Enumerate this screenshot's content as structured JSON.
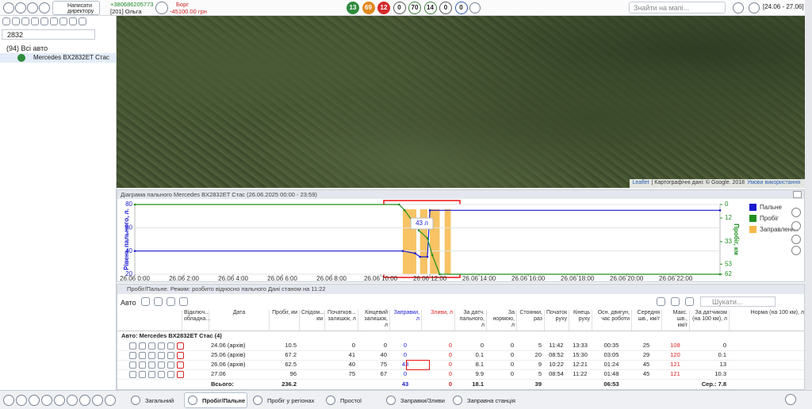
{
  "toolbar": {
    "user_button": "Написати директору",
    "phone": "+380686205773",
    "operator": "[201] Ольга",
    "debt_label": "Борг",
    "debt": "-45100.00 грн",
    "badges": [
      {
        "value": 13,
        "color": "#2e8b3e",
        "filled": true
      },
      {
        "value": 69,
        "color": "#e0891e",
        "filled": true
      },
      {
        "value": 12,
        "color": "#d42a2a",
        "filled": true
      },
      {
        "value": 0,
        "color": "#555555",
        "filled": false
      },
      {
        "value": 70,
        "color": "#3a7f3a",
        "filled": false
      },
      {
        "value": 14,
        "color": "#3a7f3a",
        "filled": false
      },
      {
        "value": 0,
        "color": "#555555",
        "filled": false
      },
      {
        "value": 0,
        "color": "#2f5fb3",
        "filled": false
      }
    ],
    "map_search": "Знайти на мапі...",
    "date_range": "[24.06 - 27.06]"
  },
  "sidebar": {
    "search": "2832",
    "group": "(94) Всі авто",
    "vehicle": "Mercedes BX2832ET Стас"
  },
  "map": {
    "leaflet": "Leaflet",
    "attribution": "| Картографічні дані: © Google. 2018",
    "terms": "Умови використання"
  },
  "fuel_chart": {
    "type": "line",
    "title": "Діаграма пального Mercedes BX2832ET Стас (26.06.2025 00:00 - 23:59)",
    "y_label": "Рівень пального, л.",
    "y2_label": "Пробіг, км",
    "annotation": "43 л",
    "xlim": [
      0,
      23.8
    ],
    "ylim": [
      20,
      80
    ],
    "y2lim": [
      0,
      62
    ],
    "y2_inverted": true,
    "xticks": [
      {
        "value": 0,
        "label": "26.06 0:00"
      },
      {
        "value": 2,
        "label": "26.06 2:00"
      },
      {
        "value": 4,
        "label": "26.06 4:00"
      },
      {
        "value": 6,
        "label": "26.06 6:00"
      },
      {
        "value": 8,
        "label": "26.06 8:00"
      },
      {
        "value": 10,
        "label": "26.06 10:00"
      },
      {
        "value": 12,
        "label": "26.06 12:00"
      },
      {
        "value": 14,
        "label": "26.06 14:00"
      },
      {
        "value": 16,
        "label": "26.06 16:00"
      },
      {
        "value": 18,
        "label": "26.06 18:00"
      },
      {
        "value": 20,
        "label": "26.06 20:00"
      },
      {
        "value": 22,
        "label": "26.06 22:00"
      }
    ],
    "yticks": [
      20,
      40,
      60,
      80
    ],
    "y2ticks": [
      0,
      12,
      33,
      53,
      62
    ],
    "series": [
      {
        "name": "Пальне",
        "color": "#1a1ad0",
        "x": [
          0,
          10.9,
          11.4,
          11.6,
          11.9,
          12.0,
          23.8
        ],
        "values": [
          40,
          40,
          38,
          35,
          35,
          75,
          75
        ]
      },
      {
        "name": "Пробіг",
        "color": "#1f8f1f",
        "axis": "y2",
        "x": [
          0,
          10.75,
          10.97,
          11.3,
          11.55,
          11.9,
          12.1,
          12.4,
          23.8
        ],
        "values": [
          0,
          0,
          5,
          15,
          23,
          30,
          45,
          62,
          62
        ]
      }
    ],
    "refuel": {
      "name": "Заправлення",
      "color": "#f6b94a",
      "intervals": [
        [
          10.9,
          11.45
        ],
        [
          11.6,
          11.9
        ],
        [
          12.0,
          12.4
        ],
        [
          12.6,
          12.85
        ]
      ]
    }
  },
  "table": {
    "title": "Пробіг/Пальне. Режим: розбито відносно пального Дані станом на 11:22",
    "group_by": "Авто",
    "search": "Шукати...",
    "headers": [
      "Відключ...\nобладна...",
      "Дата",
      "Пробіг, км",
      "Спідом...\nкм",
      "Початков...\nзалишок, л",
      "Кінцевий\nзалишок, л",
      "Заправки,\nл",
      "Зливи, л",
      "За датч.\nпального, л",
      "За\nнормою, л",
      "Стоянки,\nраз",
      "Початок\nруху",
      "Кінець\nруху",
      "Осн. двигун,\nчас роботи",
      "Середня\nшв., км/г",
      "Макс. шв.,\nкм/г",
      "За датчиком\n(на 100 км), л",
      "Норма (на 100 км), л"
    ],
    "group": "Авто: Mercedes BX2832ET Стас (4)",
    "rows": [
      [
        "24.06 (архів)",
        "10.5",
        null,
        "0",
        "0",
        "0",
        "0",
        "0",
        "0",
        "5",
        "11:42",
        "13:33",
        "00:35",
        "25",
        "108",
        "0",
        null
      ],
      [
        "25.06 (архів)",
        "67.2",
        null,
        "41",
        "40",
        "0",
        "0",
        "0.1",
        "0",
        "20",
        "08:52",
        "15:30",
        "03:05",
        "29",
        "120",
        "0.1",
        null
      ],
      [
        "26.06 (архів)",
        "62.5",
        null,
        "40",
        "75",
        "43",
        "0",
        "8.1",
        "0",
        "9",
        "10:22",
        "12:21",
        "01:24",
        "45",
        "121",
        "13",
        null
      ],
      [
        "27.06",
        "96",
        null,
        "75",
        "67",
        "0",
        "0",
        "9.9",
        "0",
        "5",
        "08:54",
        "11:22",
        "01:48",
        "45",
        "121",
        "10.3",
        null
      ]
    ],
    "totals": [
      "Всього:",
      "236.2",
      null,
      null,
      null,
      "43",
      "0",
      "18.1",
      null,
      "39",
      null,
      null,
      "06:53",
      null,
      null,
      "Сер.: 7.8",
      null
    ]
  },
  "tabs": [
    "Загальний",
    "Пробіг/Пальне",
    "Пробіг у регіонах",
    "Простої",
    "Заправки/Зливи",
    "Заправна станція"
  ],
  "active_tab": 1
}
